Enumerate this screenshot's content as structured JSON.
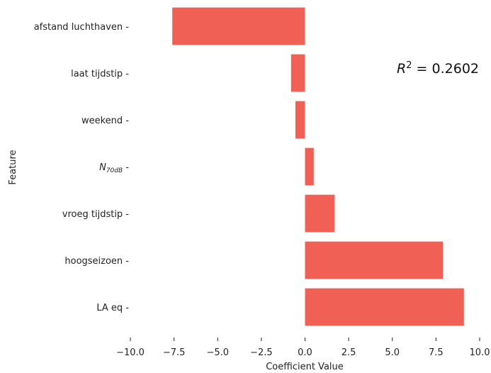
{
  "chart_data": {
    "type": "bar",
    "orientation": "horizontal",
    "categories": [
      "afstand luchthaven",
      "laat tijdstip",
      "weekend",
      "N_70dB",
      "vroeg tijdstip",
      "hoogseizoen",
      "LA eq"
    ],
    "category_labels": [
      {
        "main": "afstand luchthaven",
        "sub": ""
      },
      {
        "main": "laat tijdstip",
        "sub": ""
      },
      {
        "main": "weekend",
        "sub": ""
      },
      {
        "main": "N",
        "sub": "70dB"
      },
      {
        "main": "vroeg tijdstip",
        "sub": ""
      },
      {
        "main": "hoogseizoen",
        "sub": ""
      },
      {
        "main": "LA eq",
        "sub": ""
      }
    ],
    "values": [
      -7.6,
      -0.8,
      -0.55,
      0.5,
      1.7,
      7.9,
      9.1
    ],
    "xlabel": "Coefficient Value",
    "ylabel": "Feature",
    "xlim": [
      -10,
      10
    ],
    "xticks": [
      -10,
      -7.5,
      -5,
      -2.5,
      0,
      2.5,
      5,
      7.5,
      10
    ],
    "xtick_labels": [
      "−10.0",
      "−7.5",
      "−5.0",
      "−2.5",
      "0.0",
      "2.5",
      "5.0",
      "7.5",
      "10.0"
    ],
    "bar_color": "#f06055",
    "grid": false,
    "annotation": {
      "var": "R",
      "sup": "2",
      "text": " = 0.2602"
    }
  }
}
